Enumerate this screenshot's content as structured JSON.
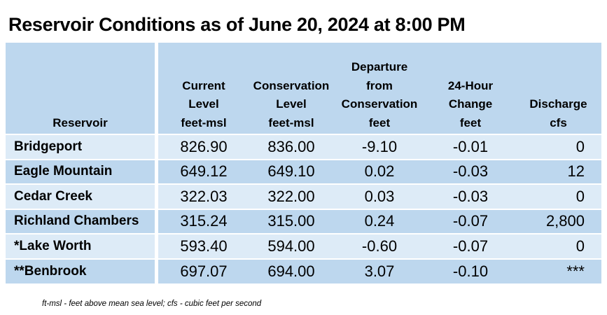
{
  "title": "Reservoir Conditions as of June 20, 2024 at 8:00 PM",
  "headers": {
    "reservoir": [
      "Reservoir"
    ],
    "current_level": [
      "Current",
      "Level",
      "feet-msl"
    ],
    "conservation_level": [
      "Conservation",
      "Level",
      "feet-msl"
    ],
    "departure": [
      "Departure",
      "from",
      "Conservation",
      "feet"
    ],
    "change_24h": [
      "24-Hour",
      "Change",
      "feet"
    ],
    "discharge": [
      "Discharge",
      "cfs"
    ]
  },
  "rows": [
    {
      "name": "Bridgeport",
      "current": "826.90",
      "conservation": "836.00",
      "departure": "-9.10",
      "change": "-0.01",
      "discharge": "0"
    },
    {
      "name": "Eagle Mountain",
      "current": "649.12",
      "conservation": "649.10",
      "departure": "0.02",
      "change": "-0.03",
      "discharge": "12"
    },
    {
      "name": "Cedar Creek",
      "current": "322.03",
      "conservation": "322.00",
      "departure": "0.03",
      "change": "-0.03",
      "discharge": "0"
    },
    {
      "name": "Richland Chambers",
      "current": "315.24",
      "conservation": "315.00",
      "departure": "0.24",
      "change": "-0.07",
      "discharge": "2,800"
    },
    {
      "name": "*Lake Worth",
      "current": "593.40",
      "conservation": "594.00",
      "departure": "-0.60",
      "change": "-0.07",
      "discharge": "0"
    },
    {
      "name": "**Benbrook",
      "current": "697.07",
      "conservation": "694.00",
      "departure": "3.07",
      "change": "-0.10",
      "discharge": "***"
    }
  ],
  "footnote": "ft-msl - feet above mean sea level; cfs - cubic feet per second",
  "colors": {
    "header_bg": "#bdd7ee",
    "row_light": "#ddebf7",
    "row_dark": "#bdd7ee"
  }
}
